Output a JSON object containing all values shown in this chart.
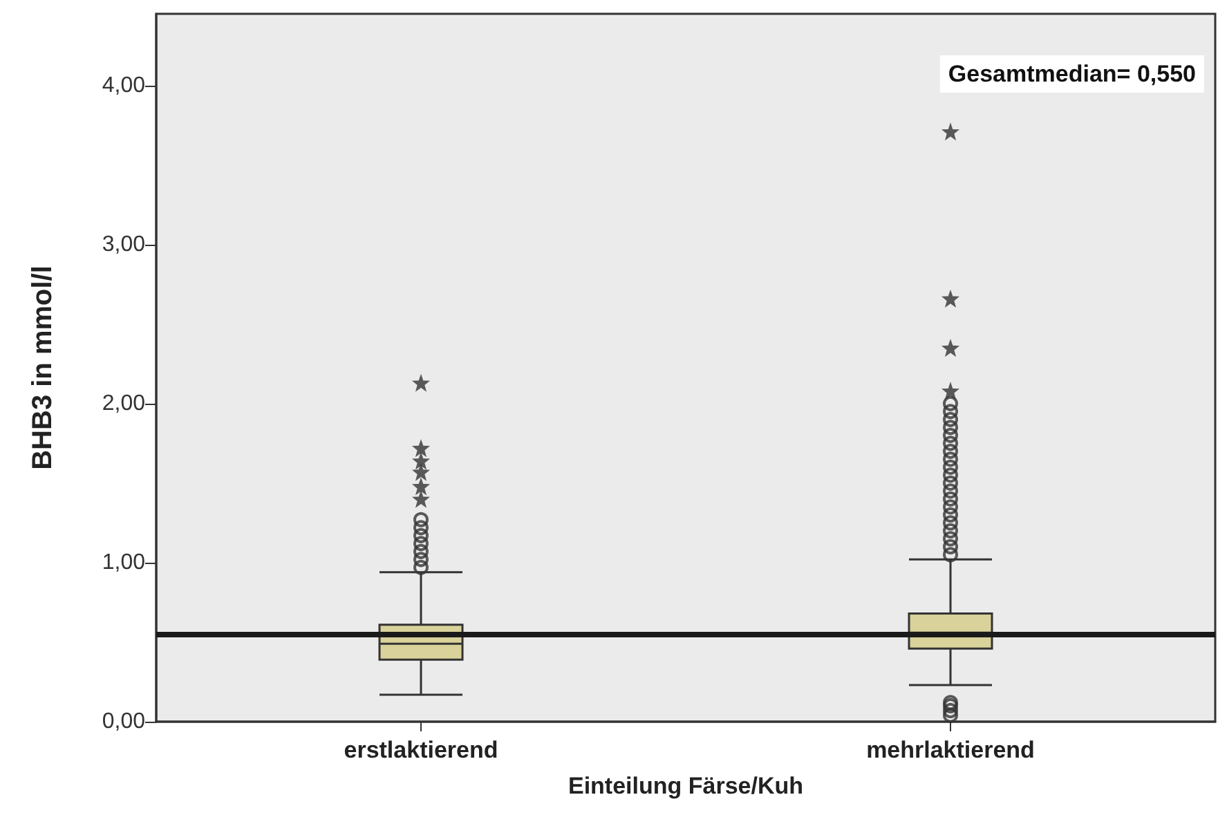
{
  "chart_data": {
    "type": "box",
    "categories": [
      "erstlaktierend",
      "mehrlaktierend"
    ],
    "xlabel": "Einteilung Färse/Kuh",
    "ylabel": "BHB3 in mmol/l",
    "ylim": [
      0,
      4.45
    ],
    "yticks": [
      {
        "value": 0,
        "label": "0,00"
      },
      {
        "value": 1,
        "label": "1,00"
      },
      {
        "value": 2,
        "label": "2,00"
      },
      {
        "value": 3,
        "label": "3,00"
      },
      {
        "value": 4,
        "label": "4,00"
      }
    ],
    "grid": false,
    "series": [
      {
        "type": "box",
        "color": "#d9d29a",
        "boxes": [
          {
            "low": 0.17,
            "q1": 0.39,
            "median": 0.49,
            "q3": 0.61,
            "high": 0.94,
            "outliers": [
              0.97,
              1.02,
              1.07,
              1.12,
              1.17,
              1.22,
              1.27
            ]
          },
          {
            "low": 0.23,
            "q1": 0.46,
            "median": 0.56,
            "q3": 0.68,
            "high": 1.02,
            "outliers": [
              0.04,
              0.07,
              0.1,
              0.12,
              1.05,
              1.1,
              1.15,
              1.2,
              1.25,
              1.3,
              1.35,
              1.4,
              1.45,
              1.5,
              1.55,
              1.6,
              1.65,
              1.7,
              1.75,
              1.8,
              1.85,
              1.9,
              1.95,
              2.0
            ]
          }
        ]
      },
      {
        "type": "scatter",
        "marker": "star",
        "color": "#333333",
        "x": [
          "erstlaktierend",
          "erstlaktierend",
          "erstlaktierend",
          "erstlaktierend",
          "erstlaktierend",
          "erstlaktierend",
          "mehrlaktierend",
          "mehrlaktierend",
          "mehrlaktierend",
          "mehrlaktierend"
        ],
        "values": [
          1.4,
          1.48,
          1.57,
          1.64,
          1.72,
          2.13,
          2.08,
          2.35,
          2.66,
          3.71
        ]
      }
    ],
    "ref_lines": [
      {
        "axis": "y",
        "value": 0.55,
        "label": "Gesamtmedian= 0,550",
        "color": "#1a1a1a"
      }
    ]
  }
}
